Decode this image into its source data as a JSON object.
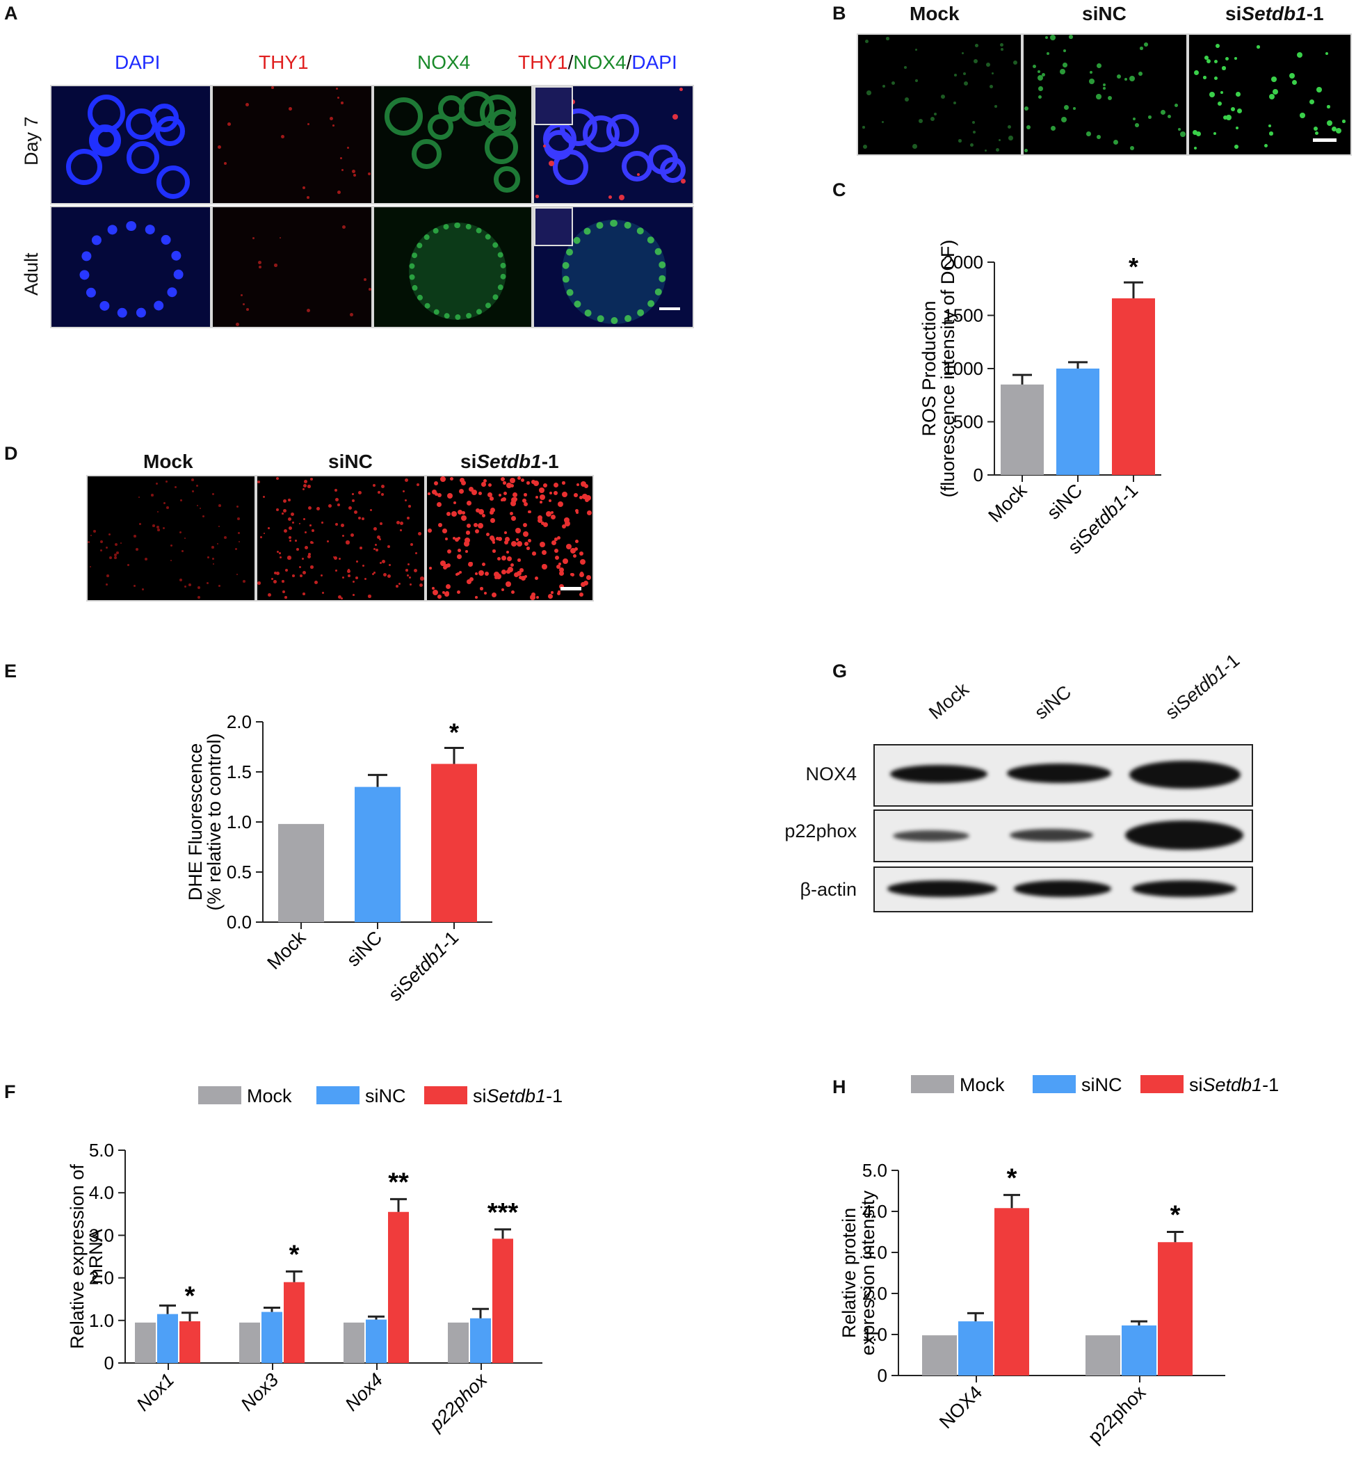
{
  "panel_letters": [
    "A",
    "B",
    "C",
    "D",
    "E",
    "F",
    "G",
    "H"
  ],
  "panel_a": {
    "columns": [
      "DAPI",
      "THY1",
      "NOX4",
      "THY1",
      "/",
      "NOX4",
      "/",
      "DAPI"
    ],
    "rows": [
      "Day 7",
      "Adult"
    ]
  },
  "panel_b": {
    "columns": [
      "Mock",
      "siNC",
      "si",
      "Setdb1",
      "-1"
    ]
  },
  "panel_d": {
    "columns": [
      "Mock",
      "siNC",
      "si",
      "Setdb1",
      "-1"
    ]
  },
  "colors": {
    "mock": "#a6a6aa",
    "sinc": "#4ea0f7",
    "sisetdb1": "#f03c3c",
    "dapi": "#1f2cff",
    "thy1": "#e02020",
    "nox4": "#1a8a2a"
  },
  "chart_data": [
    {
      "panel": "C",
      "type": "bar",
      "categories": [
        "Mock",
        "siNC",
        "siSetdb1-1"
      ],
      "category_parts": [
        [
          "Mock",
          ""
        ],
        [
          "siNC",
          ""
        ],
        [
          "si",
          "Setdb1",
          "-1"
        ]
      ],
      "values": [
        850,
        1000,
        1660
      ],
      "errors": [
        90,
        60,
        150
      ],
      "significance": [
        "",
        "",
        "*"
      ],
      "ylabel": [
        "ROS Production",
        "(fluorescence intensity of DCF)"
      ],
      "ylim": [
        0,
        2000
      ],
      "yticks": [
        "0",
        "500",
        "1000",
        "1500",
        "2000"
      ]
    },
    {
      "panel": "E",
      "type": "bar",
      "categories": [
        "Mock",
        "siNC",
        "siSetdb1-1"
      ],
      "category_parts": [
        [
          "Mock",
          ""
        ],
        [
          "siNC",
          ""
        ],
        [
          "si",
          "Setdb1",
          "-1"
        ]
      ],
      "values": [
        0.98,
        1.35,
        1.58
      ],
      "errors": [
        0,
        0.12,
        0.16
      ],
      "significance": [
        "",
        "",
        "*"
      ],
      "ylabel": [
        "DHE Fluorescence",
        "(% relative to control)"
      ],
      "ylim": [
        0,
        2.0
      ],
      "yticks": [
        "0.0",
        "0.5",
        "1.0",
        "1.5",
        "2.0"
      ]
    },
    {
      "panel": "F",
      "type": "bar",
      "categories": [
        "Nox1",
        "Nox3",
        "Nox4",
        "p22phox"
      ],
      "series": [
        {
          "name": "Mock",
          "values": [
            0.95,
            0.95,
            0.95,
            0.95
          ],
          "errors": [
            0,
            0,
            0,
            0
          ]
        },
        {
          "name": "siNC",
          "values": [
            1.15,
            1.2,
            1.02,
            1.05
          ],
          "errors": [
            0.2,
            0.1,
            0.07,
            0.22
          ]
        },
        {
          "name": "siSetdb1-1",
          "values": [
            0.98,
            1.9,
            3.55,
            2.92
          ],
          "errors": [
            0.2,
            0.25,
            0.3,
            0.22
          ]
        }
      ],
      "legend_parts": [
        [
          "Mock",
          ""
        ],
        [
          "siNC",
          ""
        ],
        [
          "si",
          "Setdb1",
          "-1"
        ]
      ],
      "significance": [
        "*",
        "*",
        "**",
        "***"
      ],
      "ylabel": [
        "Relative expression of",
        "mRNA"
      ],
      "ylim": [
        0,
        5.0
      ],
      "yticks": [
        "0",
        "1.0",
        "2.0",
        "3.0",
        "4.0",
        "5.0"
      ]
    },
    {
      "panel": "H",
      "type": "bar",
      "categories": [
        "NOX4",
        "p22phox"
      ],
      "series": [
        {
          "name": "Mock",
          "values": [
            0.98,
            0.98
          ],
          "errors": [
            0,
            0
          ]
        },
        {
          "name": "siNC",
          "values": [
            1.32,
            1.22
          ],
          "errors": [
            0.2,
            0.1
          ]
        },
        {
          "name": "siSetdb1-1",
          "values": [
            4.08,
            3.25
          ],
          "errors": [
            0.32,
            0.25
          ]
        }
      ],
      "legend_parts": [
        [
          "Mock",
          ""
        ],
        [
          "siNC",
          ""
        ],
        [
          "si",
          "Setdb1",
          "-1"
        ]
      ],
      "significance": [
        "*",
        "*"
      ],
      "ylabel": [
        "Relative protein",
        "expression intensity"
      ],
      "ylim": [
        0,
        5.0
      ],
      "yticks": [
        "0",
        "1.0",
        "2.0",
        "3.0",
        "4.0",
        "5.0"
      ]
    }
  ],
  "panel_g": {
    "lanes": [
      "Mock",
      "siNC",
      "si",
      "Setdb1",
      "-1"
    ],
    "rows": [
      "NOX4",
      "p22phox",
      "β-actin"
    ]
  }
}
